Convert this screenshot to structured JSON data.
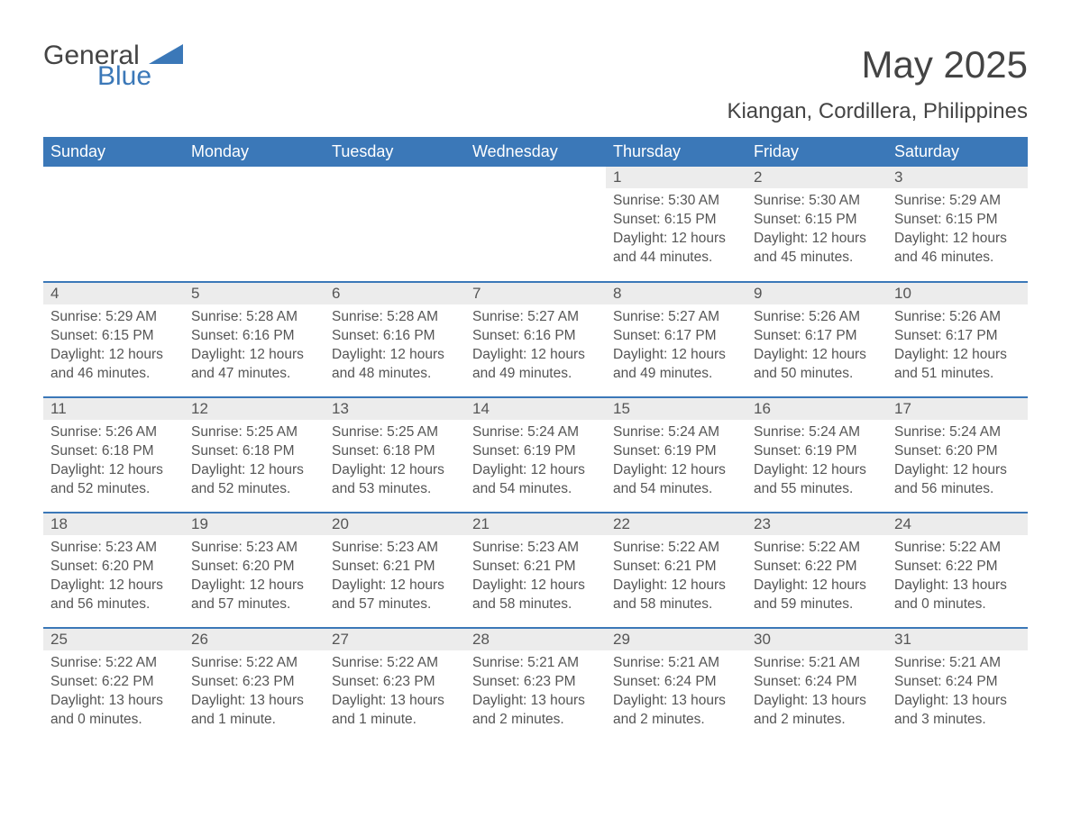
{
  "logo": {
    "word1": "General",
    "word2": "Blue"
  },
  "title": "May 2025",
  "subtitle": "Kiangan, Cordillera, Philippines",
  "colors": {
    "header_bg": "#3b78b8",
    "header_text": "#ffffff",
    "daynum_bg": "#ececec",
    "text": "#555555",
    "page_bg": "#ffffff",
    "rule": "#3b78b8"
  },
  "daysOfWeek": [
    "Sunday",
    "Monday",
    "Tuesday",
    "Wednesday",
    "Thursday",
    "Friday",
    "Saturday"
  ],
  "weeks": [
    [
      {
        "n": "",
        "sr": "",
        "ss": "",
        "dl": ""
      },
      {
        "n": "",
        "sr": "",
        "ss": "",
        "dl": ""
      },
      {
        "n": "",
        "sr": "",
        "ss": "",
        "dl": ""
      },
      {
        "n": "",
        "sr": "",
        "ss": "",
        "dl": ""
      },
      {
        "n": "1",
        "sr": "Sunrise: 5:30 AM",
        "ss": "Sunset: 6:15 PM",
        "dl": "Daylight: 12 hours and 44 minutes."
      },
      {
        "n": "2",
        "sr": "Sunrise: 5:30 AM",
        "ss": "Sunset: 6:15 PM",
        "dl": "Daylight: 12 hours and 45 minutes."
      },
      {
        "n": "3",
        "sr": "Sunrise: 5:29 AM",
        "ss": "Sunset: 6:15 PM",
        "dl": "Daylight: 12 hours and 46 minutes."
      }
    ],
    [
      {
        "n": "4",
        "sr": "Sunrise: 5:29 AM",
        "ss": "Sunset: 6:15 PM",
        "dl": "Daylight: 12 hours and 46 minutes."
      },
      {
        "n": "5",
        "sr": "Sunrise: 5:28 AM",
        "ss": "Sunset: 6:16 PM",
        "dl": "Daylight: 12 hours and 47 minutes."
      },
      {
        "n": "6",
        "sr": "Sunrise: 5:28 AM",
        "ss": "Sunset: 6:16 PM",
        "dl": "Daylight: 12 hours and 48 minutes."
      },
      {
        "n": "7",
        "sr": "Sunrise: 5:27 AM",
        "ss": "Sunset: 6:16 PM",
        "dl": "Daylight: 12 hours and 49 minutes."
      },
      {
        "n": "8",
        "sr": "Sunrise: 5:27 AM",
        "ss": "Sunset: 6:17 PM",
        "dl": "Daylight: 12 hours and 49 minutes."
      },
      {
        "n": "9",
        "sr": "Sunrise: 5:26 AM",
        "ss": "Sunset: 6:17 PM",
        "dl": "Daylight: 12 hours and 50 minutes."
      },
      {
        "n": "10",
        "sr": "Sunrise: 5:26 AM",
        "ss": "Sunset: 6:17 PM",
        "dl": "Daylight: 12 hours and 51 minutes."
      }
    ],
    [
      {
        "n": "11",
        "sr": "Sunrise: 5:26 AM",
        "ss": "Sunset: 6:18 PM",
        "dl": "Daylight: 12 hours and 52 minutes."
      },
      {
        "n": "12",
        "sr": "Sunrise: 5:25 AM",
        "ss": "Sunset: 6:18 PM",
        "dl": "Daylight: 12 hours and 52 minutes."
      },
      {
        "n": "13",
        "sr": "Sunrise: 5:25 AM",
        "ss": "Sunset: 6:18 PM",
        "dl": "Daylight: 12 hours and 53 minutes."
      },
      {
        "n": "14",
        "sr": "Sunrise: 5:24 AM",
        "ss": "Sunset: 6:19 PM",
        "dl": "Daylight: 12 hours and 54 minutes."
      },
      {
        "n": "15",
        "sr": "Sunrise: 5:24 AM",
        "ss": "Sunset: 6:19 PM",
        "dl": "Daylight: 12 hours and 54 minutes."
      },
      {
        "n": "16",
        "sr": "Sunrise: 5:24 AM",
        "ss": "Sunset: 6:19 PM",
        "dl": "Daylight: 12 hours and 55 minutes."
      },
      {
        "n": "17",
        "sr": "Sunrise: 5:24 AM",
        "ss": "Sunset: 6:20 PM",
        "dl": "Daylight: 12 hours and 56 minutes."
      }
    ],
    [
      {
        "n": "18",
        "sr": "Sunrise: 5:23 AM",
        "ss": "Sunset: 6:20 PM",
        "dl": "Daylight: 12 hours and 56 minutes."
      },
      {
        "n": "19",
        "sr": "Sunrise: 5:23 AM",
        "ss": "Sunset: 6:20 PM",
        "dl": "Daylight: 12 hours and 57 minutes."
      },
      {
        "n": "20",
        "sr": "Sunrise: 5:23 AM",
        "ss": "Sunset: 6:21 PM",
        "dl": "Daylight: 12 hours and 57 minutes."
      },
      {
        "n": "21",
        "sr": "Sunrise: 5:23 AM",
        "ss": "Sunset: 6:21 PM",
        "dl": "Daylight: 12 hours and 58 minutes."
      },
      {
        "n": "22",
        "sr": "Sunrise: 5:22 AM",
        "ss": "Sunset: 6:21 PM",
        "dl": "Daylight: 12 hours and 58 minutes."
      },
      {
        "n": "23",
        "sr": "Sunrise: 5:22 AM",
        "ss": "Sunset: 6:22 PM",
        "dl": "Daylight: 12 hours and 59 minutes."
      },
      {
        "n": "24",
        "sr": "Sunrise: 5:22 AM",
        "ss": "Sunset: 6:22 PM",
        "dl": "Daylight: 13 hours and 0 minutes."
      }
    ],
    [
      {
        "n": "25",
        "sr": "Sunrise: 5:22 AM",
        "ss": "Sunset: 6:22 PM",
        "dl": "Daylight: 13 hours and 0 minutes."
      },
      {
        "n": "26",
        "sr": "Sunrise: 5:22 AM",
        "ss": "Sunset: 6:23 PM",
        "dl": "Daylight: 13 hours and 1 minute."
      },
      {
        "n": "27",
        "sr": "Sunrise: 5:22 AM",
        "ss": "Sunset: 6:23 PM",
        "dl": "Daylight: 13 hours and 1 minute."
      },
      {
        "n": "28",
        "sr": "Sunrise: 5:21 AM",
        "ss": "Sunset: 6:23 PM",
        "dl": "Daylight: 13 hours and 2 minutes."
      },
      {
        "n": "29",
        "sr": "Sunrise: 5:21 AM",
        "ss": "Sunset: 6:24 PM",
        "dl": "Daylight: 13 hours and 2 minutes."
      },
      {
        "n": "30",
        "sr": "Sunrise: 5:21 AM",
        "ss": "Sunset: 6:24 PM",
        "dl": "Daylight: 13 hours and 2 minutes."
      },
      {
        "n": "31",
        "sr": "Sunrise: 5:21 AM",
        "ss": "Sunset: 6:24 PM",
        "dl": "Daylight: 13 hours and 3 minutes."
      }
    ]
  ]
}
